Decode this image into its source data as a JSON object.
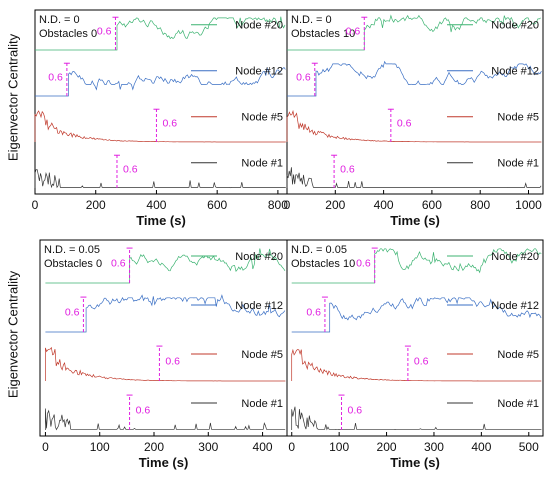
{
  "figure": {
    "ylabel": "Eigenvector Centrality",
    "xlabel": "Time (s)",
    "threshold_label": "0.6",
    "node_labels": [
      "Node #20",
      "Node #12",
      "Node #5",
      "Node #1"
    ],
    "colors": {
      "node20": "#3cb371",
      "node12": "#3a6fc4",
      "node5": "#c0392b",
      "node1": "#333333",
      "threshold": "#e020e0"
    }
  },
  "chart_data": [
    {
      "type": "line",
      "panel": "top-left",
      "annotation": [
        "N.D. = 0",
        "Obstacles 0"
      ],
      "xlabel": "Time (s)",
      "ylabel": "Eigenvector Centrality",
      "xlim": [
        0,
        830
      ],
      "xticks": [
        0,
        200,
        400,
        600,
        800
      ],
      "series": [
        {
          "name": "Node #20",
          "onset": 270,
          "threshold_x": 265
        },
        {
          "name": "Node #12",
          "onset": 110,
          "threshold_x": 105
        },
        {
          "name": "Node #5",
          "onset": 0,
          "threshold_x": 400
        },
        {
          "name": "Node #1",
          "onset": 0,
          "threshold_x": 270
        }
      ],
      "threshold": 0.6
    },
    {
      "type": "line",
      "panel": "top-right",
      "annotation": [
        "N.D. = 0",
        "Obstacles 10"
      ],
      "xlabel": "Time (s)",
      "ylabel": "",
      "xlim": [
        0,
        1060
      ],
      "xticks": [
        0,
        200,
        400,
        600,
        800,
        1000
      ],
      "series": [
        {
          "name": "Node #20",
          "onset": 320,
          "threshold_x": 320
        },
        {
          "name": "Node #12",
          "onset": 120,
          "threshold_x": 115
        },
        {
          "name": "Node #5",
          "onset": 0,
          "threshold_x": 430
        },
        {
          "name": "Node #1",
          "onset": 0,
          "threshold_x": 195
        }
      ],
      "threshold": 0.6
    },
    {
      "type": "line",
      "panel": "bottom-left",
      "annotation": [
        "N.D. = 0.05",
        "Obstacles 0"
      ],
      "xlabel": "Time (s)",
      "ylabel": "Eigenvector Centrality",
      "xlim": [
        -10,
        445
      ],
      "xticks": [
        0,
        100,
        200,
        300,
        400
      ],
      "series": [
        {
          "name": "Node #20",
          "onset": 155,
          "threshold_x": 155
        },
        {
          "name": "Node #12",
          "onset": 75,
          "threshold_x": 70
        },
        {
          "name": "Node #5",
          "onset": 0,
          "threshold_x": 210
        },
        {
          "name": "Node #1",
          "onset": 0,
          "threshold_x": 155
        }
      ],
      "threshold": 0.6
    },
    {
      "type": "line",
      "panel": "bottom-right",
      "annotation": [
        "N.D. = 0.05",
        "Obstacles 10"
      ],
      "xlabel": "Time (s)",
      "ylabel": "",
      "xlim": [
        -10,
        530
      ],
      "xticks": [
        0,
        100,
        200,
        300,
        400,
        500
      ],
      "series": [
        {
          "name": "Node #20",
          "onset": 175,
          "threshold_x": 175
        },
        {
          "name": "Node #12",
          "onset": 80,
          "threshold_x": 70
        },
        {
          "name": "Node #5",
          "onset": 0,
          "threshold_x": 245
        },
        {
          "name": "Node #1",
          "onset": 0,
          "threshold_x": 105
        }
      ],
      "threshold": 0.6
    }
  ]
}
